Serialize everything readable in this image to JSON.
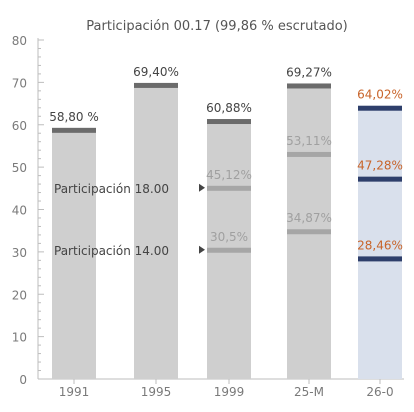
{
  "chart_data": {
    "type": "bar",
    "title": "Participación 00.17  (99,86 % escrutado)",
    "xlabel": "",
    "ylabel": "",
    "ylim": [
      0,
      80
    ],
    "yticks": [
      0,
      10,
      20,
      30,
      40,
      50,
      60,
      70,
      80
    ],
    "categories": [
      "1991",
      "1995",
      "1999",
      "25-M",
      "26-0"
    ],
    "bars": [
      {
        "category": "1991",
        "final": 58.8,
        "final_label": "58,80 %",
        "marks": []
      },
      {
        "category": "1995",
        "final": 69.4,
        "final_label": "69,40%",
        "marks": []
      },
      {
        "category": "1999",
        "final": 60.88,
        "final_label": "60,88%",
        "marks": [
          {
            "value": 45.12,
            "label": "45,12%"
          },
          {
            "value": 30.5,
            "label": "30,5%"
          }
        ]
      },
      {
        "category": "25-M",
        "final": 69.27,
        "final_label": "69,27%",
        "marks": [
          {
            "value": 53.11,
            "label": "53,11%"
          },
          {
            "value": 34.87,
            "label": "34,87%"
          }
        ]
      },
      {
        "category": "26-0",
        "final": 64.02,
        "final_label": "64,02%",
        "highlight": true,
        "marks": [
          {
            "value": 47.28,
            "label": "47,28%"
          },
          {
            "value": 28.46,
            "label": "28,46%"
          }
        ]
      }
    ],
    "annotations": [
      {
        "text": "Participación 18.00",
        "value": 45.12
      },
      {
        "text": "Participación 14.00",
        "value": 30.5
      }
    ],
    "colors": {
      "bar": "#cfcfcf",
      "bar_cap": "#6b6b6b",
      "mark": "#a6a6a6",
      "highlight_bar": "#d9e0ec",
      "highlight_line": "#2e3f6b",
      "highlight_text": "#c8642a",
      "label_dark": "#444444",
      "label_mid": "#a0a0a0",
      "axis": "#bdbdbd",
      "title": "#555555"
    }
  }
}
